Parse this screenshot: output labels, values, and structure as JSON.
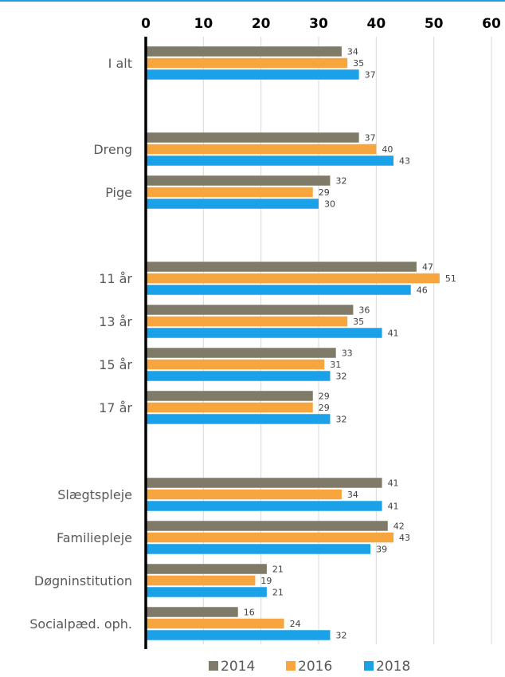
{
  "colors": {
    "top_rule": "#1ba1e2",
    "grid": "#d9d9d9",
    "axis": "#000000"
  },
  "chart_data": {
    "type": "bar",
    "orientation": "horizontal",
    "title": "",
    "xlabel": "",
    "ylabel": "",
    "xlim": [
      0,
      60
    ],
    "x_ticks": [
      "0",
      "10",
      "20",
      "30",
      "40",
      "50",
      "60"
    ],
    "x_axis_position": "top",
    "grid": true,
    "legend_placement": "bottom-center",
    "groups": [
      {
        "label": "I alt",
        "values": [
          34,
          35,
          37
        ]
      },
      {
        "label": "Dreng",
        "values": [
          37,
          40,
          43
        ]
      },
      {
        "label": "Pige",
        "values": [
          32,
          29,
          30
        ]
      },
      {
        "label": "11 år",
        "values": [
          47,
          51,
          46
        ]
      },
      {
        "label": "13 år",
        "values": [
          36,
          35,
          41
        ]
      },
      {
        "label": "15 år",
        "values": [
          33,
          31,
          32
        ]
      },
      {
        "label": "17 år",
        "values": [
          29,
          29,
          32
        ]
      },
      {
        "label": "Slægtspleje",
        "values": [
          41,
          34,
          41
        ]
      },
      {
        "label": "Familiepleje",
        "values": [
          42,
          43,
          39
        ]
      },
      {
        "label": "Døgninstitution",
        "values": [
          21,
          19,
          21
        ]
      },
      {
        "label": "Socialpæd. oph.",
        "values": [
          16,
          24,
          32
        ]
      }
    ],
    "series": [
      {
        "name": "2014",
        "color": "#7f7b68"
      },
      {
        "name": "2016",
        "color": "#f7a53f"
      },
      {
        "name": "2018",
        "color": "#1aa1e8"
      }
    ]
  }
}
